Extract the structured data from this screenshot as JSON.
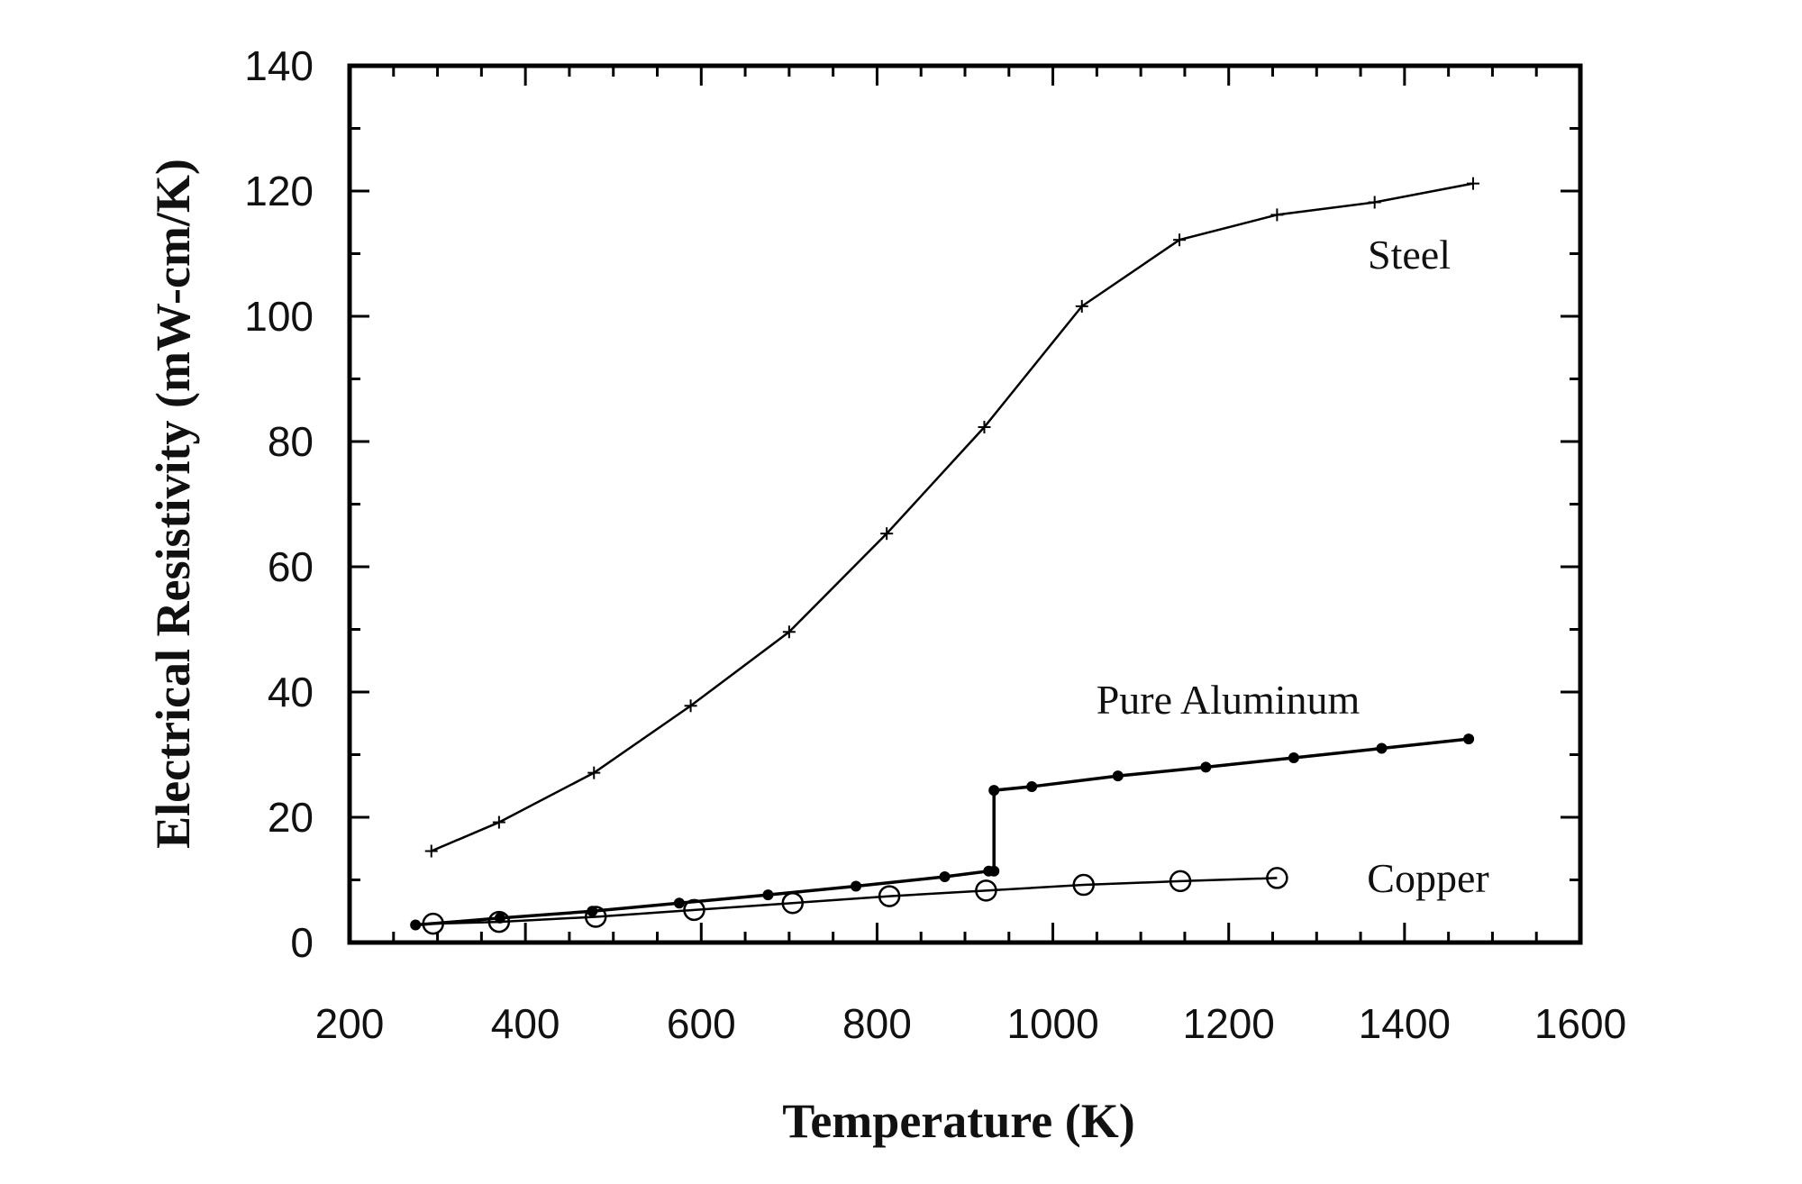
{
  "chart_data": {
    "type": "line",
    "title": "",
    "xlabel": "Temperature (K)",
    "ylabel": "Electrical Resistivity (mW-cm/K)",
    "xlim": [
      200,
      1600
    ],
    "ylim": [
      0,
      140
    ],
    "xticks": [
      200,
      400,
      600,
      800,
      1000,
      1200,
      1400,
      1600
    ],
    "yticks": [
      0,
      20,
      40,
      60,
      80,
      100,
      120,
      140
    ],
    "grid": false,
    "legend": "inline labels",
    "series": [
      {
        "name": "Steel",
        "marker": "plus",
        "x": [
          293,
          370,
          478,
          588,
          700,
          811,
          922,
          1033,
          1144,
          1255,
          1366,
          1478
        ],
        "y": [
          14.6,
          19.2,
          27.1,
          37.8,
          49.6,
          65.3,
          82.3,
          101.6,
          112.2,
          116.2,
          118.2,
          121.2
        ]
      },
      {
        "name": "Pure Aluminum",
        "marker": "filled-circle",
        "x": [
          275,
          371,
          476,
          575,
          676,
          776,
          877,
          927,
          933,
          933,
          976,
          1074,
          1174,
          1274,
          1374,
          1473
        ],
        "y": [
          2.8,
          3.9,
          5.0,
          6.3,
          7.6,
          9.0,
          10.5,
          11.4,
          11.4,
          24.3,
          24.9,
          26.6,
          28.0,
          29.5,
          31.0,
          32.5
        ]
      },
      {
        "name": "Copper",
        "marker": "open-circle",
        "x": [
          295,
          370,
          480,
          592,
          704,
          814,
          924,
          1035,
          1145,
          1255
        ],
        "y": [
          3.0,
          3.3,
          4.1,
          5.2,
          6.3,
          7.4,
          8.3,
          9.2,
          9.8,
          10.3
        ]
      }
    ]
  }
}
